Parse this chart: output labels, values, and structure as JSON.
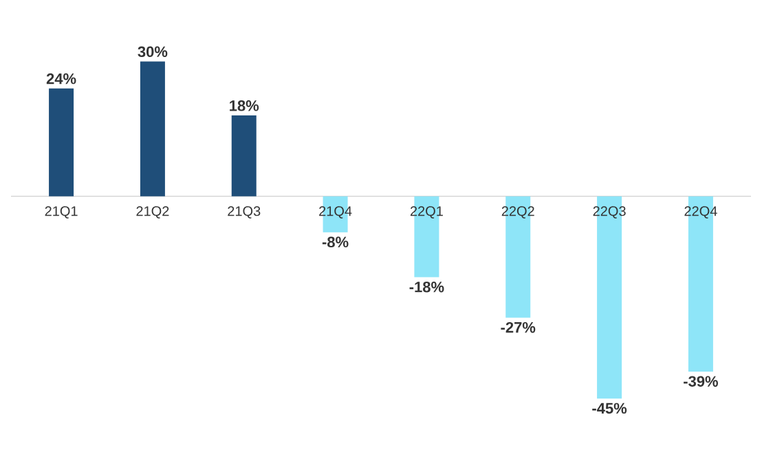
{
  "chart_data": {
    "type": "bar",
    "categories": [
      "21Q1",
      "21Q2",
      "21Q3",
      "21Q4",
      "22Q1",
      "22Q2",
      "22Q3",
      "22Q4"
    ],
    "values": [
      24,
      30,
      18,
      -8,
      -18,
      -27,
      -45,
      -39
    ],
    "colors": [
      "#1f4e79",
      "#1f4e79",
      "#1f4e79",
      "#8ee5f8",
      "#8ee5f8",
      "#8ee5f8",
      "#8ee5f8",
      "#8ee5f8"
    ],
    "value_labels": [
      "24%",
      "30%",
      "18%",
      "-8%",
      "-18%",
      "-27%",
      "-45%",
      "-39%"
    ]
  }
}
